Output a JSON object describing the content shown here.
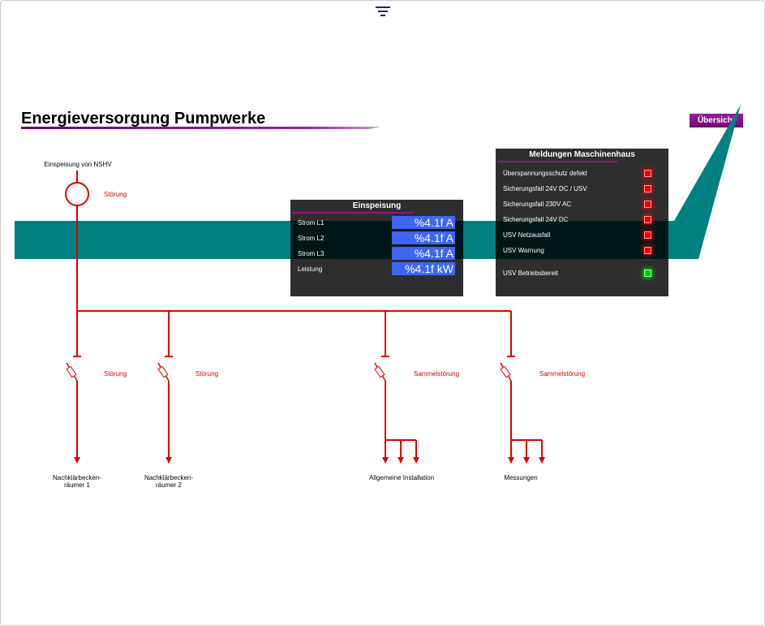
{
  "header": {
    "filter_icon": "filter-icon",
    "title": "Energieversorgung Pumpwerke",
    "overview_button": "Übersicht"
  },
  "colors": {
    "accent": "#800080",
    "band": "#008080",
    "line": "#e00000",
    "value_box": "#3f66f2"
  },
  "feed": {
    "label": "Einspeisung von NSHV",
    "status": "Störung"
  },
  "branches": [
    {
      "label1": "Nachklärbecken-",
      "label2": "räumer 1",
      "status": "Störung"
    },
    {
      "label1": "Nachklärbecken-",
      "label2": "räumer 2",
      "status": "Störung"
    },
    {
      "label1": "Allgemeine Installation",
      "label2": "",
      "status": "Sammelstörung"
    },
    {
      "label1": "Messungen",
      "label2": "",
      "status": "Sammelstörung"
    }
  ],
  "einspeisung": {
    "title": "Einspeisung",
    "rows": [
      {
        "label": "Strom L1",
        "value": "%4.1f A"
      },
      {
        "label": "Strom L2",
        "value": "%4.1f A"
      },
      {
        "label": "Strom L3",
        "value": "%4.1f A"
      },
      {
        "label": "Leistung",
        "value": "%4.1f kW"
      }
    ]
  },
  "meldungen": {
    "title": "Meldungen Maschinenhaus",
    "rows": [
      {
        "label": "Überspannungsschutz defekt",
        "state": "red"
      },
      {
        "label": "Sicherungsfall 24V DC / USV",
        "state": "red"
      },
      {
        "label": "Sicherungsfall 230V AC",
        "state": "red"
      },
      {
        "label": "Sicherungsfall 24V DC",
        "state": "red"
      },
      {
        "label": "USV Netzausfall",
        "state": "red"
      },
      {
        "label": "USV Warnung",
        "state": "red"
      },
      {
        "label": "USV Betriebsbereit",
        "state": "green"
      }
    ]
  }
}
